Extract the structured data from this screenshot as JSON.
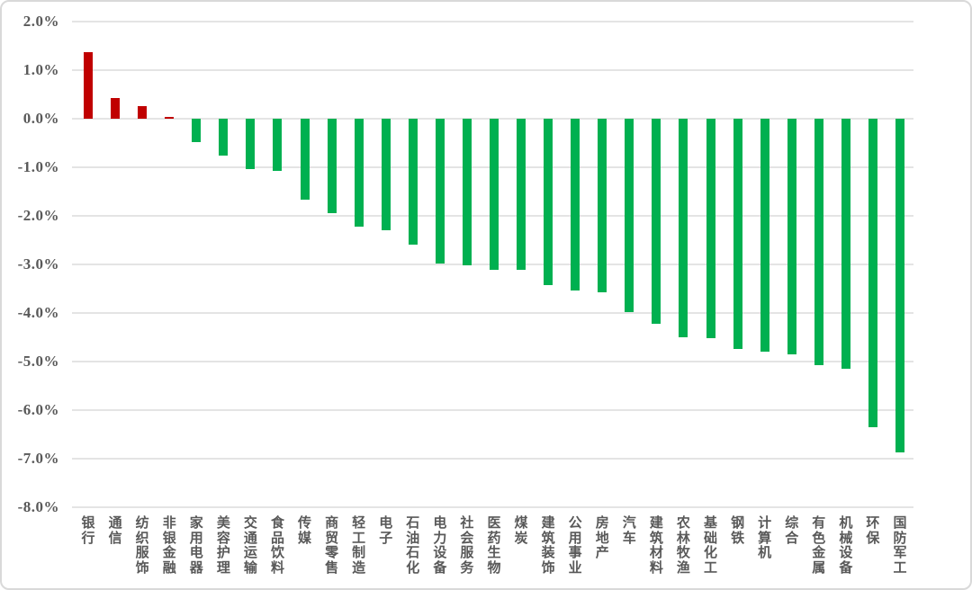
{
  "chart_data": {
    "type": "bar",
    "title": "",
    "xlabel": "",
    "ylabel": "",
    "unit": "%",
    "categories": [
      "银行",
      "通信",
      "纺织服饰",
      "非银金融",
      "家用电器",
      "美容护理",
      "交通运输",
      "食品饮料",
      "传媒",
      "商贸零售",
      "轻工制造",
      "电子",
      "石油石化",
      "电力设备",
      "社会服务",
      "医药生物",
      "煤炭",
      "建筑装饰",
      "公用事业",
      "房地产",
      "汽车",
      "建筑材料",
      "农林牧渔",
      "基础化工",
      "钢铁",
      "计算机",
      "综合",
      "有色金属",
      "机械设备",
      "环保",
      "国防军工"
    ],
    "values": [
      1.36,
      0.43,
      0.26,
      0.04,
      -0.49,
      -0.76,
      -1.04,
      -1.08,
      -1.67,
      -1.94,
      -2.22,
      -2.3,
      -2.59,
      -2.97,
      -3.01,
      -3.1,
      -3.11,
      -3.42,
      -3.53,
      -3.57,
      -3.97,
      -4.22,
      -4.5,
      -4.52,
      -4.74,
      -4.8,
      -4.84,
      -5.07,
      -5.15,
      -6.35,
      -6.86
    ],
    "ylim": [
      -8,
      2
    ],
    "ytick_labels": [
      "2.0%",
      "1.0%",
      "0.0%",
      "-1.0%",
      "-2.0%",
      "-3.0%",
      "-4.0%",
      "-5.0%",
      "-6.0%",
      "-7.0%",
      "-8.0%"
    ],
    "ytick_values": [
      2,
      1,
      0,
      -1,
      -2,
      -3,
      -4,
      -5,
      -6,
      -7,
      -8
    ],
    "grid": true,
    "legend": "none",
    "colors": {
      "positive_bar": "#c00000",
      "negative_bar": "#00b050",
      "gridline": "#e4e4e4",
      "axis_text": "#595959",
      "frame_border": "#d9d9d9",
      "background": "#ffffff"
    }
  }
}
